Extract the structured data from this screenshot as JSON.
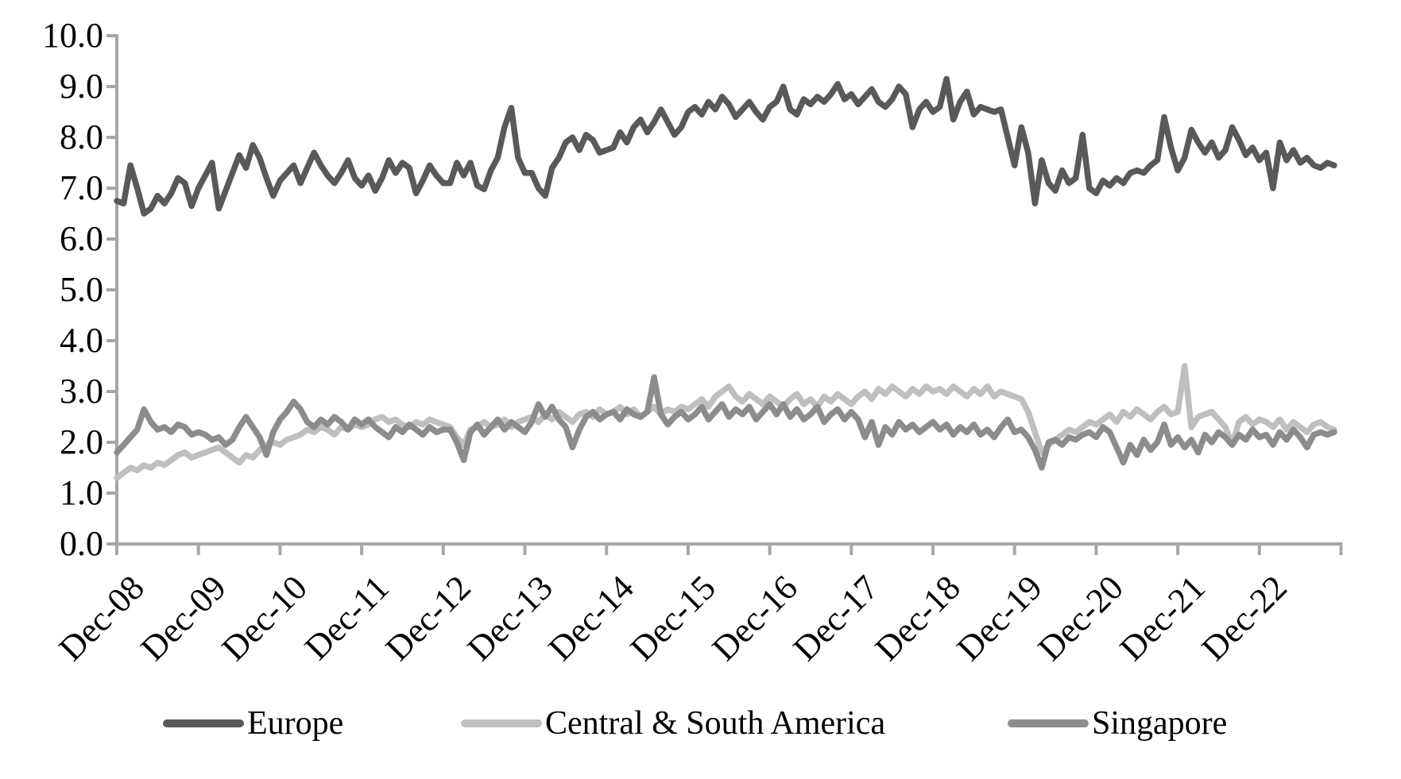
{
  "chart_data": {
    "type": "line",
    "title": "",
    "xlabel": "",
    "ylabel": "",
    "grid": false,
    "legend_position": "bottom",
    "background_color": "#ffffff",
    "axis_color": "#a6a6a6",
    "text_color": "#000000",
    "y_axis": {
      "min": 0.0,
      "max": 10.0,
      "step": 1.0,
      "tick_labels": [
        "0.0",
        "1.0",
        "2.0",
        "3.0",
        "4.0",
        "5.0",
        "6.0",
        "7.0",
        "8.0",
        "9.0",
        "10.0"
      ]
    },
    "x_axis": {
      "unit": "monthly points, Dec-2008 through Nov-2023",
      "n_points": 180,
      "months_per_tick": 12,
      "tick_labels": [
        "Dec-08",
        "Dec-09",
        "Dec-10",
        "Dec-11",
        "Dec-12",
        "Dec-13",
        "Dec-14",
        "Dec-15",
        "Dec-16",
        "Dec-17",
        "Dec-18",
        "Dec-19",
        "Dec-20",
        "Dec-21",
        "Dec-22"
      ]
    },
    "series": [
      {
        "name": "Europe",
        "color": "#595959",
        "values": [
          6.75,
          6.7,
          7.45,
          7.0,
          6.5,
          6.6,
          6.85,
          6.7,
          6.9,
          7.2,
          7.1,
          6.65,
          7.0,
          7.25,
          7.5,
          6.6,
          6.95,
          7.3,
          7.65,
          7.4,
          7.85,
          7.6,
          7.2,
          6.85,
          7.15,
          7.3,
          7.45,
          7.1,
          7.4,
          7.7,
          7.45,
          7.25,
          7.1,
          7.3,
          7.55,
          7.2,
          7.05,
          7.25,
          6.95,
          7.2,
          7.55,
          7.3,
          7.5,
          7.4,
          6.9,
          7.15,
          7.45,
          7.25,
          7.1,
          7.1,
          7.5,
          7.25,
          7.5,
          7.05,
          6.98,
          7.35,
          7.6,
          8.2,
          8.58,
          7.6,
          7.3,
          7.3,
          7.0,
          6.85,
          7.4,
          7.6,
          7.9,
          8.0,
          7.75,
          8.05,
          7.95,
          7.7,
          7.75,
          7.8,
          8.1,
          7.9,
          8.2,
          8.35,
          8.1,
          8.3,
          8.55,
          8.3,
          8.05,
          8.2,
          8.5,
          8.6,
          8.45,
          8.7,
          8.55,
          8.8,
          8.65,
          8.4,
          8.55,
          8.7,
          8.5,
          8.35,
          8.6,
          8.7,
          9.0,
          8.55,
          8.45,
          8.75,
          8.65,
          8.8,
          8.7,
          8.85,
          9.05,
          8.75,
          8.85,
          8.65,
          8.8,
          8.95,
          8.7,
          8.6,
          8.75,
          9.0,
          8.85,
          8.2,
          8.55,
          8.7,
          8.5,
          8.6,
          9.15,
          8.35,
          8.7,
          8.9,
          8.45,
          8.6,
          8.55,
          8.5,
          8.55,
          8.0,
          7.45,
          8.2,
          7.7,
          6.7,
          7.55,
          7.1,
          6.95,
          7.35,
          7.1,
          7.2,
          8.05,
          7.0,
          6.9,
          7.15,
          7.05,
          7.2,
          7.1,
          7.3,
          7.35,
          7.3,
          7.45,
          7.55,
          8.4,
          7.8,
          7.35,
          7.6,
          8.15,
          7.9,
          7.7,
          7.9,
          7.6,
          7.75,
          8.2,
          7.95,
          7.65,
          7.8,
          7.55,
          7.7,
          7.0,
          7.9,
          7.55,
          7.75,
          7.5,
          7.6,
          7.45,
          7.4,
          7.5,
          7.45
        ]
      },
      {
        "name": "Central & South America",
        "color": "#bfbfbf",
        "values": [
          1.3,
          1.4,
          1.5,
          1.45,
          1.55,
          1.5,
          1.6,
          1.55,
          1.65,
          1.75,
          1.8,
          1.7,
          1.75,
          1.8,
          1.85,
          1.9,
          1.8,
          1.7,
          1.6,
          1.75,
          1.7,
          1.85,
          1.95,
          2.0,
          1.95,
          2.05,
          2.1,
          2.15,
          2.25,
          2.2,
          2.3,
          2.25,
          2.15,
          2.3,
          2.25,
          2.35,
          2.3,
          2.35,
          2.45,
          2.5,
          2.4,
          2.45,
          2.35,
          2.3,
          2.4,
          2.35,
          2.45,
          2.4,
          2.35,
          2.3,
          2.1,
          1.95,
          2.25,
          2.3,
          2.4,
          2.3,
          2.35,
          2.45,
          2.3,
          2.4,
          2.45,
          2.5,
          2.4,
          2.55,
          2.45,
          2.6,
          2.5,
          2.4,
          2.55,
          2.6,
          2.5,
          2.65,
          2.55,
          2.6,
          2.7,
          2.55,
          2.65,
          2.5,
          2.6,
          2.7,
          2.55,
          2.65,
          2.6,
          2.7,
          2.65,
          2.75,
          2.85,
          2.7,
          2.9,
          3.0,
          3.1,
          2.9,
          2.8,
          2.95,
          2.85,
          2.75,
          2.9,
          2.8,
          2.7,
          2.85,
          2.95,
          2.75,
          2.85,
          2.7,
          2.9,
          2.8,
          2.95,
          2.85,
          2.75,
          2.9,
          3.0,
          2.85,
          3.05,
          2.95,
          3.1,
          3.0,
          2.9,
          3.05,
          2.95,
          3.1,
          3.0,
          3.05,
          2.95,
          3.1,
          3.0,
          2.9,
          3.05,
          2.95,
          3.1,
          2.9,
          3.0,
          2.95,
          2.9,
          2.85,
          2.6,
          2.2,
          1.8,
          1.95,
          2.05,
          2.15,
          2.25,
          2.2,
          2.3,
          2.4,
          2.35,
          2.45,
          2.55,
          2.4,
          2.6,
          2.5,
          2.65,
          2.55,
          2.45,
          2.6,
          2.7,
          2.55,
          2.6,
          3.5,
          2.3,
          2.5,
          2.55,
          2.6,
          2.45,
          2.3,
          1.95,
          2.4,
          2.5,
          2.35,
          2.45,
          2.4,
          2.3,
          2.45,
          2.25,
          2.4,
          2.3,
          2.2,
          2.35,
          2.4,
          2.3,
          2.25
        ]
      },
      {
        "name": "Singapore",
        "color": "#8c8c8c",
        "values": [
          1.8,
          1.95,
          2.1,
          2.25,
          2.65,
          2.4,
          2.25,
          2.3,
          2.2,
          2.35,
          2.3,
          2.15,
          2.2,
          2.15,
          2.05,
          2.1,
          1.95,
          2.05,
          2.3,
          2.5,
          2.3,
          2.1,
          1.75,
          2.2,
          2.45,
          2.6,
          2.8,
          2.65,
          2.4,
          2.3,
          2.45,
          2.35,
          2.5,
          2.4,
          2.25,
          2.45,
          2.35,
          2.45,
          2.3,
          2.2,
          2.1,
          2.3,
          2.2,
          2.35,
          2.25,
          2.15,
          2.3,
          2.2,
          2.25,
          2.25,
          2.0,
          1.65,
          2.2,
          2.35,
          2.15,
          2.3,
          2.45,
          2.25,
          2.4,
          2.3,
          2.2,
          2.4,
          2.75,
          2.5,
          2.7,
          2.45,
          2.3,
          1.9,
          2.25,
          2.5,
          2.6,
          2.45,
          2.55,
          2.6,
          2.45,
          2.65,
          2.55,
          2.5,
          2.6,
          3.28,
          2.55,
          2.35,
          2.5,
          2.6,
          2.45,
          2.55,
          2.7,
          2.45,
          2.6,
          2.75,
          2.5,
          2.65,
          2.55,
          2.7,
          2.45,
          2.6,
          2.75,
          2.55,
          2.75,
          2.5,
          2.65,
          2.45,
          2.55,
          2.7,
          2.4,
          2.55,
          2.65,
          2.45,
          2.6,
          2.45,
          2.1,
          2.4,
          1.95,
          2.3,
          2.15,
          2.4,
          2.25,
          2.35,
          2.2,
          2.3,
          2.4,
          2.25,
          2.35,
          2.15,
          2.3,
          2.2,
          2.35,
          2.15,
          2.25,
          2.1,
          2.3,
          2.45,
          2.2,
          2.25,
          2.1,
          1.85,
          1.5,
          2.0,
          2.05,
          1.95,
          2.1,
          2.05,
          2.15,
          2.2,
          2.1,
          2.3,
          2.2,
          1.9,
          1.6,
          1.95,
          1.75,
          2.05,
          1.85,
          2.0,
          2.35,
          1.95,
          2.1,
          1.9,
          2.05,
          1.8,
          2.15,
          2.0,
          2.2,
          2.1,
          1.95,
          2.15,
          2.05,
          2.25,
          2.1,
          2.15,
          1.95,
          2.2,
          2.05,
          2.25,
          2.1,
          1.9,
          2.15,
          2.2,
          2.15,
          2.2
        ]
      }
    ]
  },
  "legend": {
    "items": [
      {
        "label": "Europe"
      },
      {
        "label": "Central & South America"
      },
      {
        "label": "Singapore"
      }
    ]
  }
}
